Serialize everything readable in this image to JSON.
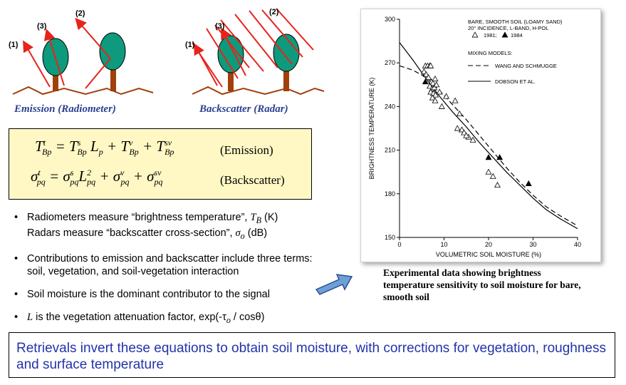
{
  "diagrams": {
    "left_label": "Emission (Radiometer)",
    "right_label": "Backscatter (Radar)",
    "ray_labels": [
      "(1)",
      "(2)",
      "(3)"
    ]
  },
  "equations": {
    "emission_tag": "(Emission)",
    "backscatter_tag": "(Backscatter)"
  },
  "bullets": {
    "b1_line1_pre": "Radiometers measure “brightness temperature”, ",
    "b1_line1_sym": "T",
    "b1_line1_sub": "B",
    "b1_line1_post": " (K)",
    "b1_line2_pre": "Radars measure “backscatter cross-section”, ",
    "b1_line2_sym": "σ",
    "b1_line2_sub": "o",
    "b1_line2_post": " (dB)",
    "b2": "Contributions to emission and backscatter include three terms: soil, vegetation, and soil-vegetation interaction",
    "b3": "Soil moisture is the dominant contributor to the signal",
    "b4_sym": "L",
    "b4_text": " is the vegetation attenuation factor,  exp(-τ",
    "b4_sub": "o",
    "b4_end": " / cosθ)"
  },
  "caption": "Experimental data showing brightness temperature sensitivity to soil moisture for bare, smooth soil",
  "banner": "Retrievals invert these equations to obtain soil moisture, with corrections for vegetation, roughness and surface temperature",
  "colors": {
    "arrow": "#e8231c",
    "tree": "#0e9a7c",
    "trunk": "#a0400a",
    "ground": "#a0400a",
    "banner_text": "#2233aa",
    "eq_bg": "#fff8c4"
  },
  "chart_data": {
    "type": "scatter",
    "xlabel": "VOLUMETRIC SOIL MOISTURE (%)",
    "ylabel": "BRIGHTNESS TEMPERATURE (K)",
    "xlim": [
      0,
      40
    ],
    "ylim": [
      150,
      300
    ],
    "xticks": [
      0,
      10,
      20,
      30,
      40
    ],
    "yticks": [
      150,
      180,
      210,
      240,
      270,
      300
    ],
    "legend_title_lines": [
      "BARE, SMOOTH SOIL (LOAMY SAND)",
      "20° INCIDENCE, L-BAND, H-POL"
    ],
    "legend_markers": [
      {
        "marker": "open-triangle",
        "label": "1981;"
      },
      {
        "marker": "filled-triangle",
        "label": "1984"
      }
    ],
    "mixing_title": "MIXING MODELS:",
    "lines_legend": [
      {
        "style": "dashed",
        "label": "WANG AND SCHMUGGE"
      },
      {
        "style": "solid",
        "label": "DOBSON ET AL."
      }
    ],
    "series": [
      {
        "name": "1981",
        "marker": "open-triangle",
        "x": [
          5.8,
          6.3,
          6.8,
          7.0,
          5.5,
          6.0,
          6.5,
          7.2,
          7.5,
          8.0,
          6.8,
          7.3,
          7.8,
          8.3,
          7.0,
          7.6,
          8.1,
          9.0,
          7.4,
          8.0,
          9.5,
          10.5,
          12.5,
          13.5,
          14.0,
          15.5,
          13.0,
          14.5,
          15.0,
          16.5,
          20.0,
          21.0,
          22.0
        ],
        "y": [
          268,
          268,
          268,
          268,
          264,
          262,
          260,
          257,
          256,
          259,
          254,
          252,
          253,
          255,
          250,
          249,
          248,
          250,
          246,
          244,
          240,
          247,
          244,
          235,
          224,
          219,
          225,
          222,
          220,
          217,
          195,
          192,
          186
        ]
      },
      {
        "name": "1984",
        "marker": "filled-triangle",
        "x": [
          5.8,
          20.0,
          22.5,
          29.0
        ],
        "y": [
          257,
          205,
          205,
          187
        ]
      }
    ],
    "curves": [
      {
        "name": "WANG AND SCHMUGGE",
        "style": "dashed",
        "x": [
          0,
          3,
          6,
          9,
          12,
          15,
          18,
          21,
          24,
          27,
          30,
          33,
          36,
          40
        ],
        "y": [
          268,
          265,
          260,
          251,
          241,
          231,
          220,
          209,
          198,
          188,
          179,
          171,
          165,
          158
        ]
      },
      {
        "name": "DOBSON ET AL.",
        "style": "solid",
        "x": [
          0,
          3,
          6,
          9,
          12,
          15,
          18,
          21,
          24,
          27,
          30,
          33,
          36,
          40
        ],
        "y": [
          284,
          272,
          259,
          247,
          236,
          226,
          215,
          205,
          195,
          186,
          177,
          169,
          163,
          156
        ]
      }
    ]
  }
}
